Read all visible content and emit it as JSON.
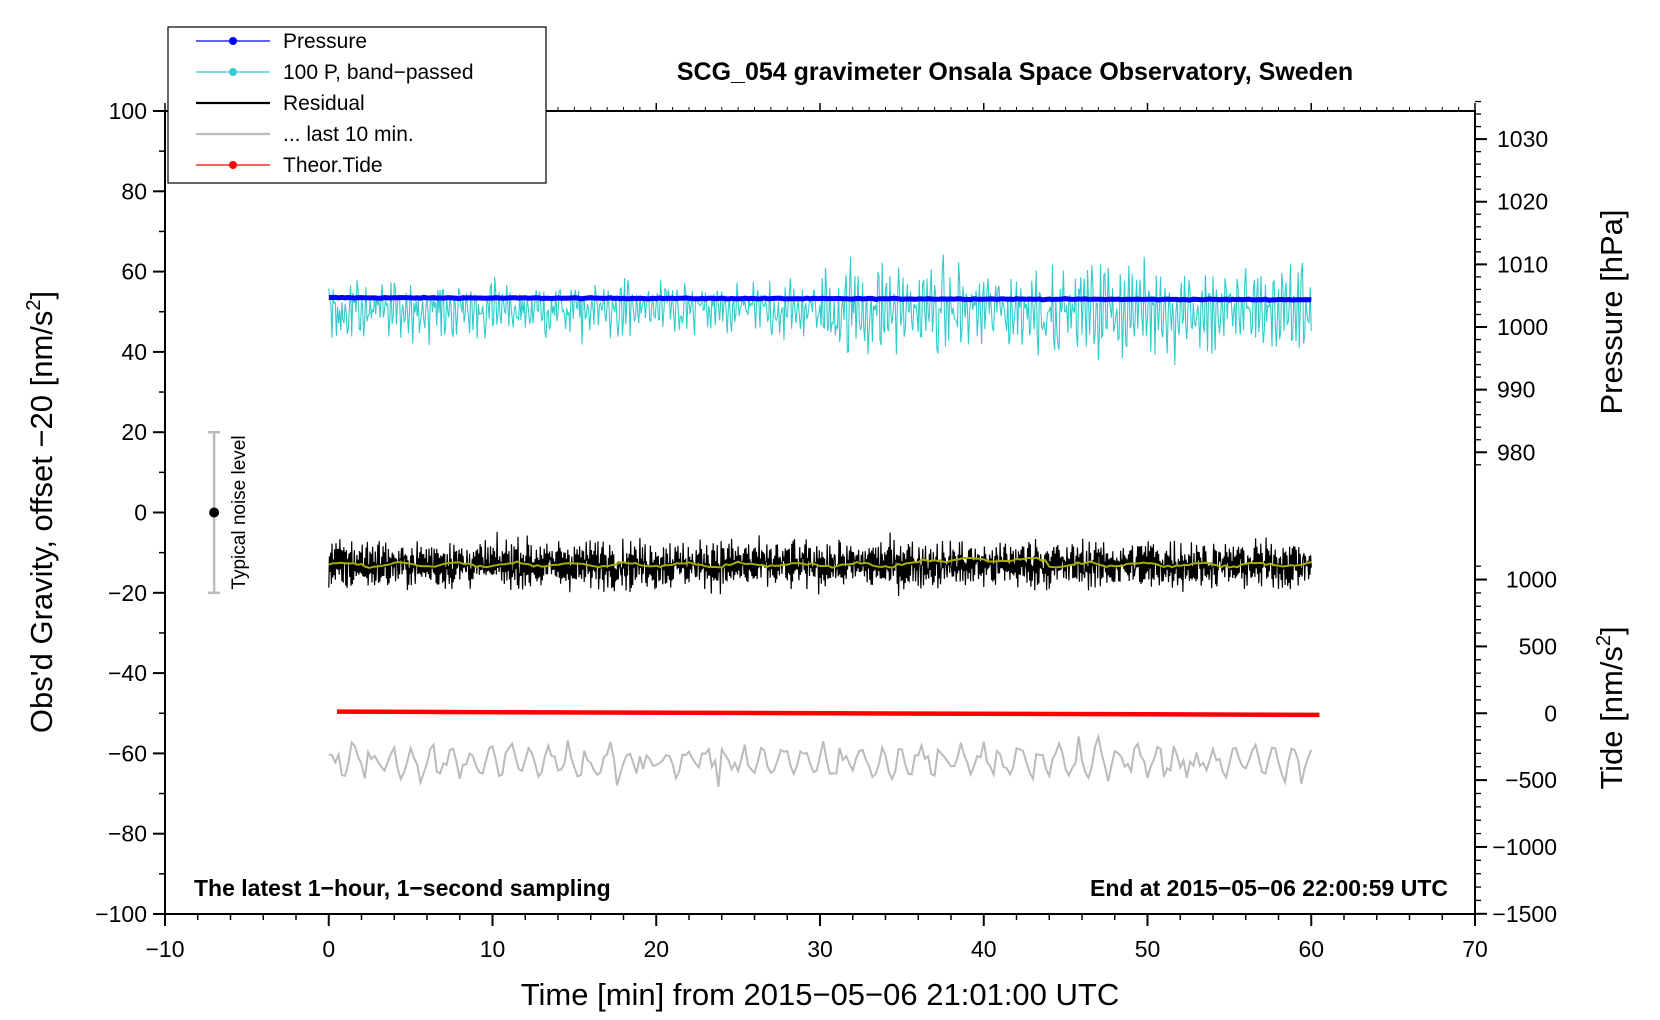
{
  "chart_data": {
    "type": "line",
    "title": "SCG_054 gravimeter Onsala Space Observatory, Sweden",
    "xlabel": "Time [min] from 2015−05−06 21:01:00 UTC",
    "ylabel_left": "Obs'd Gravity, offset −20 [nm/s",
    "ylabel_left_sup": "2",
    "ylabel_left_close": "]",
    "ylabel_right_pressure": "Pressure [hPa]",
    "ylabel_right_tide": "Tide [nm/s",
    "ylabel_right_tide_sup": "2",
    "ylabel_right_tide_close": "]",
    "xlim": [
      -10,
      70
    ],
    "ylim": [
      -100,
      100
    ],
    "x_ticks": [
      -10,
      0,
      10,
      20,
      30,
      40,
      50,
      60,
      70
    ],
    "x_tick_labels": [
      "−10",
      "0",
      "10",
      "20",
      "30",
      "40",
      "50",
      "60",
      "70"
    ],
    "y_ticks": [
      -100,
      -80,
      -60,
      -40,
      -20,
      0,
      20,
      40,
      60,
      80,
      100
    ],
    "y_tick_labels": [
      "−100",
      "−80",
      "−60",
      "−40",
      "−20",
      "0",
      "20",
      "40",
      "60",
      "80",
      "100"
    ],
    "pressure_axis": {
      "ticks": [
        980,
        990,
        1000,
        1010,
        1020,
        1030
      ],
      "tick_labels": [
        "980",
        "990",
        "1000",
        "1010",
        "1020",
        "1030"
      ],
      "gravity_at_980": 15,
      "gravity_per_hpa": 1.56
    },
    "tide_axis": {
      "ticks": [
        -1500,
        -1000,
        -500,
        0,
        500,
        1000
      ],
      "tick_labels": [
        "−1500",
        "−1000",
        "−500",
        "0",
        "500",
        "1000"
      ],
      "gravity_at_0": -50,
      "gravity_per_unit": 0.0333
    },
    "legend": [
      {
        "label": "Pressure",
        "color": "#0000ff",
        "marker": true
      },
      {
        "label": "100 P, band−passed",
        "color": "#33cccc",
        "marker": true
      },
      {
        "label": "Residual",
        "color": "#000000",
        "marker": false
      },
      {
        "label": "... last 10 min.",
        "color": "#bbbbbb",
        "marker": false
      },
      {
        "label": "Theor.Tide",
        "color": "#ff0000",
        "marker": true
      }
    ],
    "series": [
      {
        "name": "Pressure",
        "color": "#0000ff",
        "x_range": [
          0,
          60
        ],
        "start": 53.5,
        "end": 53.0,
        "noise": 0.3
      },
      {
        "name": "100 P, band−passed",
        "color": "#33cccc",
        "x_range": [
          0,
          60
        ],
        "center": 52,
        "amplitude": 7,
        "points": 900
      },
      {
        "name": "Residual",
        "color": "#000000",
        "x_range": [
          0,
          60
        ],
        "center": -13,
        "amplitude": 4.5,
        "points": 1500
      },
      {
        "name": "Residual smoothed",
        "color": "#aaaa00",
        "x_range": [
          0,
          60
        ],
        "center": -13,
        "amplitude": 0.8
      },
      {
        "name": "... last 10 min.",
        "color": "#bbbbbb",
        "x_range": [
          0,
          60
        ],
        "center": -62,
        "amplitude": 4.5,
        "points": 300
      },
      {
        "name": "Theor.Tide",
        "color": "#ff0000",
        "x_range": [
          0.5,
          60.5
        ],
        "start": -49.6,
        "end": -50.4
      }
    ],
    "noise_level": {
      "label": "Typical noise level",
      "x": -7,
      "center": 0,
      "low": -20,
      "high": 20
    },
    "annotation_left": "The latest 1−hour, 1−second sampling",
    "annotation_right": "End at 2015−05−06 22:00:59 UTC"
  },
  "colors": {
    "pressure": "#0000ff",
    "band_passed": "#33cccc",
    "residual": "#000000",
    "smoothed": "#aaaa00",
    "last10": "#bbbbbb",
    "tide": "#ff0000",
    "noise_bar": "#bbbbbb"
  }
}
